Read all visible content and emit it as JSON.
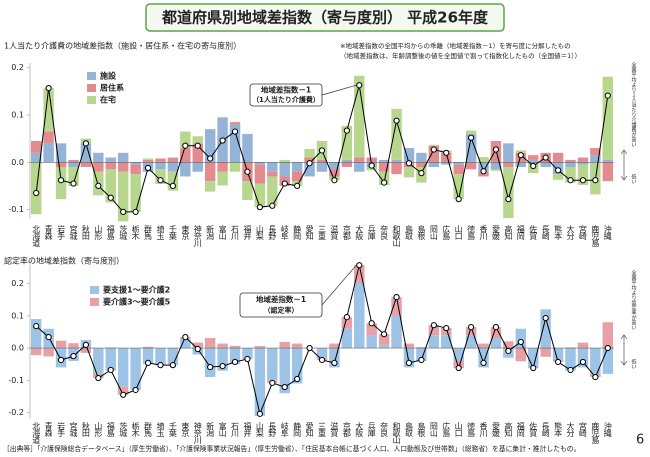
{
  "title": "都道府県別地域差指数（寄与度別） 平成26年度",
  "notes": [
    "※地域差指数の全国平均からの乖離（地域差指数－1）を寄与度に分解したもの",
    "（地域差指数は、年齢調整後の値を全国値で割って指数化したもの（全国値＝1））"
  ],
  "footer": "［出典等］「介護保険総合データベース」（厚生労働省）、「介護保険事業状況報告」（厚生労働省）、「住民基本台帳に基づく人口、人口動態及び世帯数」（総務省）を基に集計・推計したもの。",
  "page_number": "6",
  "chart_data": [
    {
      "type": "bar",
      "stacked": true,
      "title": "1人当たり介護費の地域差指数（施設・居住系・在宅の寄与度別）",
      "annotation": "（1人当たり介護費）",
      "side_labels": [
        "全国平均より１人当たり介護費が高い",
        "低い"
      ],
      "categories": [
        "北海道",
        "青森",
        "岩手",
        "宮城",
        "秋田",
        "山形",
        "福島",
        "茨城",
        "栃木",
        "群馬",
        "埼玉",
        "千葉",
        "東京",
        "神奈川",
        "新潟",
        "富山",
        "石川",
        "福井",
        "山梨",
        "長野",
        "岐阜",
        "静岡",
        "愛知",
        "三重",
        "滋賀",
        "京都",
        "大阪",
        "兵庫",
        "奈良",
        "和歌山",
        "鳥取",
        "島根",
        "岡山",
        "広島",
        "山口",
        "徳島",
        "香川",
        "愛媛",
        "高知",
        "福岡",
        "佐賀",
        "長崎",
        "熊本",
        "大分",
        "宮崎",
        "鹿児島",
        "沖縄"
      ],
      "ylim": [
        -0.12,
        0.21
      ],
      "yticks": [
        0.2,
        0.1,
        {
          "value": 0,
          "label": "0.0"
        },
        -0.1
      ],
      "series": [
        {
          "name": "施設",
          "color": "#95b3d7",
          "values": [
            0.02,
            0.04,
            0.04,
            -0.01,
            0.04,
            0.02,
            0.01,
            0.02,
            -0.005,
            -0.02,
            -0.015,
            -0.02,
            -0.03,
            -0.02,
            0.07,
            0.095,
            0.08,
            0.06,
            -0.005,
            -0.02,
            -0.03,
            -0.02,
            -0.03,
            -0.02,
            -0.015,
            0.005,
            -0.02,
            -0.01,
            0.005,
            0.005,
            0.03,
            0.02,
            -0.01,
            -0.005,
            -0.005,
            0.06,
            -0.02,
            -0.015,
            0.04,
            -0.01,
            0.005,
            -0.01,
            -0.025,
            -0.01,
            -0.005,
            0.015,
            0.005
          ]
        },
        {
          "name": "居住系",
          "color": "#e38b8f",
          "values": [
            0.025,
            0.025,
            -0.01,
            0.005,
            -0.01,
            -0.02,
            -0.015,
            -0.02,
            -0.02,
            0.005,
            0.008,
            0.01,
            0.03,
            0.04,
            -0.04,
            -0.02,
            0.005,
            -0.04,
            -0.04,
            -0.01,
            -0.02,
            -0.02,
            0.01,
            0.005,
            -0.015,
            -0.01,
            0.01,
            0.01,
            -0.02,
            -0.025,
            -0.01,
            -0.01,
            0.035,
            0.02,
            -0.02,
            -0.015,
            -0.01,
            0.045,
            -0.01,
            0.02,
            0.01,
            0.02,
            0.02,
            0.005,
            0.01,
            0.015,
            -0.04
          ]
        },
        {
          "name": "在宅",
          "color": "#b8d78e",
          "values": [
            -0.11,
            0.092,
            -0.068,
            -0.04,
            0.01,
            -0.05,
            -0.07,
            -0.105,
            -0.08,
            0.003,
            -0.031,
            -0.04,
            0.035,
            0.015,
            -0.022,
            -0.029,
            -0.02,
            -0.04,
            -0.05,
            -0.062,
            0.005,
            -0.01,
            0.018,
            0.04,
            -0.008,
            0.072,
            0.173,
            -0.007,
            -0.028,
            0.108,
            -0.022,
            -0.033,
            0.002,
            0.005,
            -0.053,
            0.007,
            0.011,
            -0.003,
            -0.108,
            0.005,
            -0.023,
            0.0,
            -0.012,
            -0.033,
            -0.043,
            -0.068,
            0.176
          ]
        },
        {
          "name": "地域差指数－1",
          "type": "line",
          "color": "#000000",
          "values": [
            -0.065,
            0.157,
            -0.038,
            -0.045,
            0.04,
            -0.05,
            -0.075,
            -0.105,
            -0.105,
            -0.012,
            -0.038,
            -0.05,
            0.035,
            0.035,
            0.008,
            0.046,
            0.065,
            -0.02,
            -0.095,
            -0.092,
            -0.045,
            -0.05,
            -0.002,
            0.025,
            -0.038,
            0.067,
            0.163,
            -0.007,
            -0.043,
            0.088,
            -0.002,
            -0.023,
            0.027,
            0.02,
            -0.078,
            0.052,
            -0.019,
            0.027,
            -0.078,
            0.015,
            -0.008,
            0.01,
            -0.017,
            -0.038,
            -0.038,
            -0.038,
            0.141
          ]
        }
      ]
    },
    {
      "type": "bar",
      "stacked": true,
      "title": "認定率の地域差指数（寄与度別）",
      "annotation": "（認定率）",
      "side_labels": [
        "全国平均より認定率が高い",
        "低い"
      ],
      "categories": [
        "北海道",
        "青森",
        "岩手",
        "宮城",
        "秋田",
        "山形",
        "福島",
        "茨城",
        "栃木",
        "群馬",
        "埼玉",
        "千葉",
        "東京",
        "神奈川",
        "新潟",
        "富山",
        "石川",
        "福井",
        "山梨",
        "長野",
        "岐阜",
        "静岡",
        "愛知",
        "三重",
        "滋賀",
        "京都",
        "大阪",
        "兵庫",
        "奈良",
        "和歌山",
        "鳥取",
        "島根",
        "岡山",
        "広島",
        "山口",
        "徳島",
        "香川",
        "愛媛",
        "高知",
        "福岡",
        "佐賀",
        "長崎",
        "熊本",
        "大分",
        "宮崎",
        "鹿児島",
        "沖縄"
      ],
      "ylim": [
        -0.22,
        0.27
      ],
      "yticks": [
        0.2,
        0.1,
        {
          "value": 0,
          "label": "0.0"
        },
        -0.1,
        -0.2
      ],
      "series": [
        {
          "name": "要支援1～要介護2",
          "color": "#9dc3e6",
          "values": [
            0.09,
            0.06,
            -0.06,
            -0.04,
            0.025,
            -0.08,
            -0.07,
            -0.12,
            -0.13,
            -0.05,
            -0.05,
            -0.05,
            0.03,
            -0.02,
            -0.09,
            -0.07,
            -0.05,
            -0.03,
            -0.21,
            -0.1,
            -0.14,
            -0.11,
            0.0,
            -0.03,
            -0.06,
            0.06,
            0.2,
            0.04,
            0.01,
            0.1,
            -0.06,
            -0.04,
            0.04,
            0.04,
            -0.04,
            0.04,
            -0.06,
            0.03,
            -0.03,
            0.06,
            -0.06,
            0.12,
            -0.04,
            -0.07,
            -0.06,
            -0.08,
            -0.08
          ]
        },
        {
          "name": "要介護3～要介護5",
          "color": "#e6a0a6",
          "values": [
            -0.022,
            -0.026,
            0.023,
            0.015,
            -0.015,
            -0.013,
            0.002,
            -0.025,
            0.0,
            0.004,
            -0.003,
            -0.003,
            0.004,
            0.017,
            0.031,
            0.014,
            0.007,
            -0.004,
            0.006,
            -0.008,
            0.019,
            0.014,
            0.0,
            -0.007,
            0.014,
            0.036,
            0.057,
            0.037,
            0.033,
            0.058,
            0.014,
            0.003,
            0.031,
            0.022,
            -0.022,
            0.025,
            0.014,
            0.035,
            0.021,
            -0.041,
            -0.002,
            -0.027,
            -0.003,
            0.002,
            0.017,
            -0.01,
            0.08
          ]
        },
        {
          "name": "地域差指数－1",
          "type": "line",
          "color": "#000000",
          "values": [
            0.068,
            0.034,
            -0.037,
            -0.025,
            0.01,
            -0.093,
            -0.068,
            -0.145,
            -0.13,
            -0.046,
            -0.053,
            -0.053,
            0.034,
            -0.003,
            -0.059,
            -0.056,
            -0.043,
            -0.034,
            -0.204,
            -0.108,
            -0.121,
            -0.096,
            0.0,
            -0.037,
            -0.046,
            0.096,
            0.257,
            0.077,
            0.043,
            0.158,
            -0.046,
            -0.037,
            0.071,
            0.062,
            -0.062,
            0.065,
            -0.046,
            0.065,
            -0.009,
            0.019,
            -0.062,
            0.093,
            -0.043,
            -0.068,
            -0.043,
            -0.09,
            0.0
          ]
        }
      ]
    }
  ]
}
